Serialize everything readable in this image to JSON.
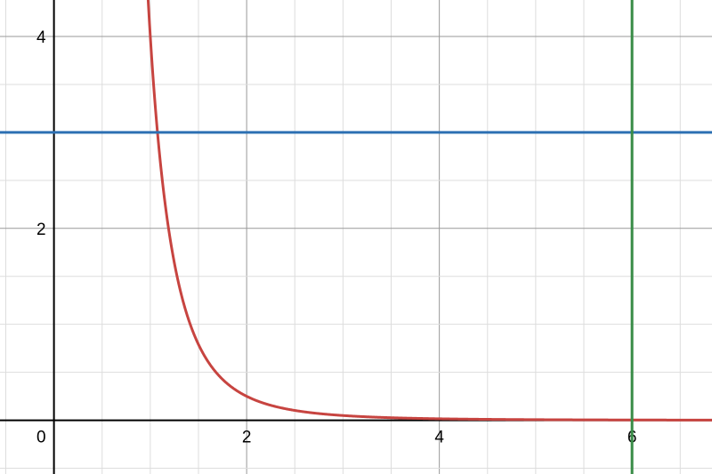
{
  "chart_data": {
    "type": "line",
    "title": "",
    "xlabel": "",
    "ylabel": "",
    "xlim": [
      -0.56,
      6.83
    ],
    "ylim": [
      -0.56,
      4.38
    ],
    "grid": true,
    "minor_grid_step": 0.5,
    "major_grid_step": 2,
    "x_ticks": [
      "0",
      "2",
      "4",
      "6"
    ],
    "y_ticks": [
      "2",
      "4"
    ],
    "series": [
      {
        "kind": "function",
        "expression": "y = 4/x^4",
        "color": "#c74440"
      },
      {
        "kind": "horizontal",
        "value": 3,
        "color": "#2d70b3"
      },
      {
        "kind": "vertical",
        "value": 6,
        "color": "#388c46"
      }
    ]
  }
}
